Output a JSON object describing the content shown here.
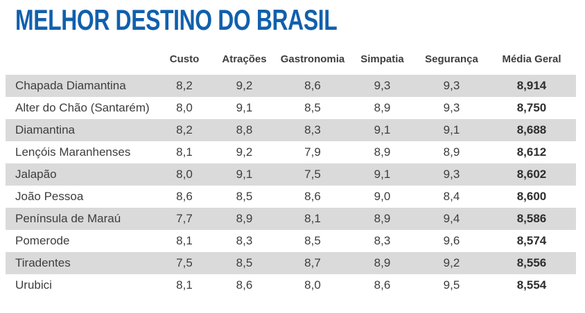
{
  "title": "MELHOR DESTINO DO BRASIL",
  "colors": {
    "title_blue": "#1160ac",
    "row_stripe": "#dadada",
    "body_text": "#3d3d3d"
  },
  "table": {
    "columns": [
      "Custo",
      "Atrações",
      "Gastronomia",
      "Simpatia",
      "Segurança",
      "Média Geral"
    ],
    "rows": [
      {
        "name": "Chapada Diamantina",
        "values": [
          "8,2",
          "9,2",
          "8,6",
          "9,3",
          "9,3",
          "8,914"
        ]
      },
      {
        "name": "Alter do Chão (Santarém)",
        "values": [
          "8,0",
          "9,1",
          "8,5",
          "8,9",
          "9,3",
          "8,750"
        ]
      },
      {
        "name": "Diamantina",
        "values": [
          "8,2",
          "8,8",
          "8,3",
          "9,1",
          "9,1",
          "8,688"
        ]
      },
      {
        "name": "Lençóis Maranhenses",
        "values": [
          "8,1",
          "9,2",
          "7,9",
          "8,9",
          "8,9",
          "8,612"
        ]
      },
      {
        "name": "Jalapão",
        "values": [
          "8,0",
          "9,1",
          "7,5",
          "9,1",
          "9,3",
          "8,602"
        ]
      },
      {
        "name": "João Pessoa",
        "values": [
          "8,6",
          "8,5",
          "8,6",
          "9,0",
          "8,4",
          "8,600"
        ]
      },
      {
        "name": "Península de Maraú",
        "values": [
          "7,7",
          "8,9",
          "8,1",
          "8,9",
          "9,4",
          "8,586"
        ]
      },
      {
        "name": "Pomerode",
        "values": [
          "8,1",
          "8,3",
          "8,5",
          "8,3",
          "9,6",
          "8,574"
        ]
      },
      {
        "name": "Tiradentes",
        "values": [
          "7,5",
          "8,5",
          "8,7",
          "8,9",
          "9,2",
          "8,556"
        ]
      },
      {
        "name": "Urubici",
        "values": [
          "8,1",
          "8,6",
          "8,0",
          "8,6",
          "9,5",
          "8,554"
        ]
      }
    ]
  },
  "chart_data": {
    "type": "table",
    "title": "MELHOR DESTINO DO BRASIL",
    "categories": [
      "Chapada Diamantina",
      "Alter do Chão (Santarém)",
      "Diamantina",
      "Lençóis Maranhenses",
      "Jalapão",
      "João Pessoa",
      "Península de Maraú",
      "Pomerode",
      "Tiradentes",
      "Urubici"
    ],
    "series": [
      {
        "name": "Custo",
        "values": [
          8.2,
          8.0,
          8.2,
          8.1,
          8.0,
          8.6,
          7.7,
          8.1,
          7.5,
          8.1
        ]
      },
      {
        "name": "Atrações",
        "values": [
          9.2,
          9.1,
          8.8,
          9.2,
          9.1,
          8.5,
          8.9,
          8.3,
          8.5,
          8.6
        ]
      },
      {
        "name": "Gastronomia",
        "values": [
          8.6,
          8.5,
          8.3,
          7.9,
          7.5,
          8.6,
          8.1,
          8.5,
          8.7,
          8.0
        ]
      },
      {
        "name": "Simpatia",
        "values": [
          9.3,
          8.9,
          9.1,
          8.9,
          9.1,
          9.0,
          8.9,
          8.3,
          8.9,
          8.6
        ]
      },
      {
        "name": "Segurança",
        "values": [
          9.3,
          9.3,
          9.1,
          8.9,
          9.3,
          8.4,
          9.4,
          9.6,
          9.2,
          9.5
        ]
      },
      {
        "name": "Média Geral",
        "values": [
          8.914,
          8.75,
          8.688,
          8.612,
          8.602,
          8.6,
          8.586,
          8.574,
          8.556,
          8.554
        ]
      }
    ],
    "layout": {
      "striped_rows": true,
      "decimal_separator": ",",
      "grid": false,
      "legend_position": "none"
    }
  }
}
